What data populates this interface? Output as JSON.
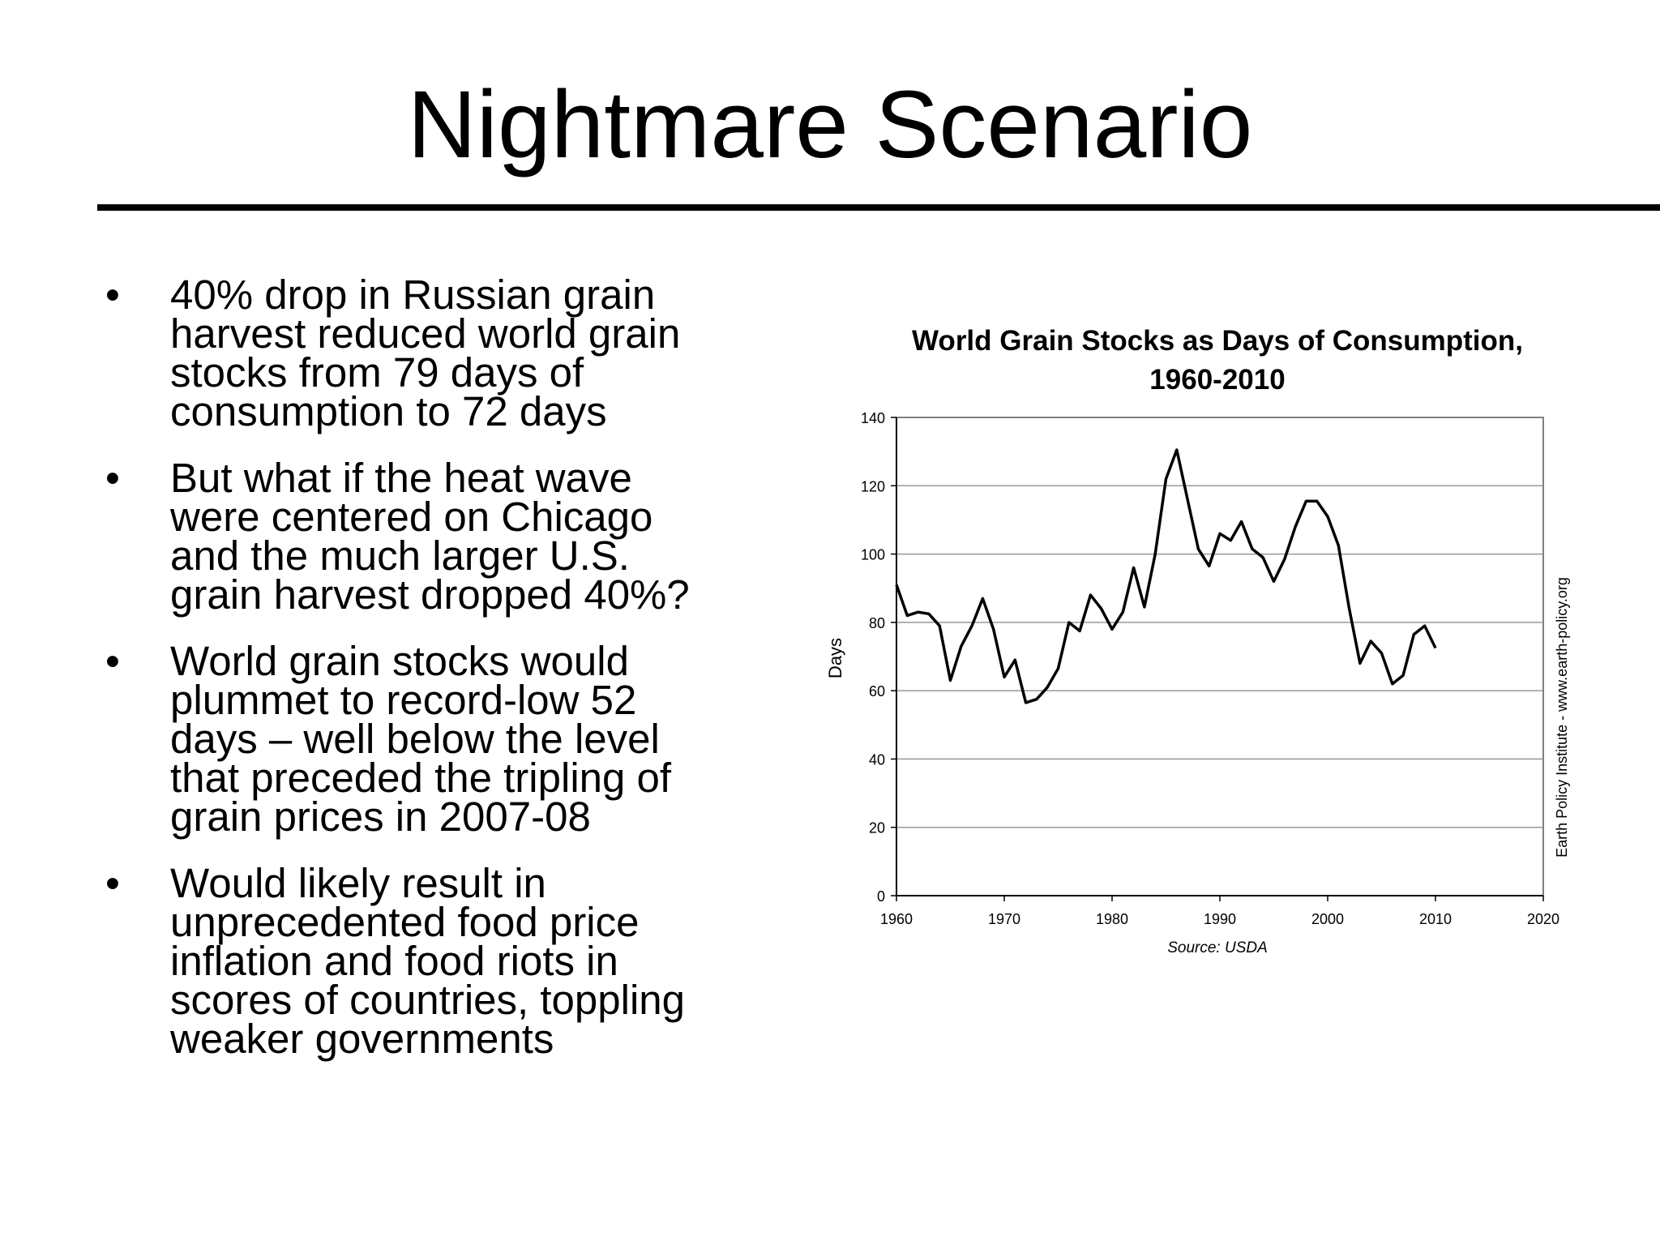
{
  "slide": {
    "title": "Nightmare Scenario",
    "bullet_symbol": "•",
    "bullets": [
      "40% drop in Russian grain harvest reduced world grain stocks from 79 days of consumption to 72 days",
      "But what if the heat wave were centered on Chicago and the much larger U.S. grain harvest dropped 40%?",
      "World grain stocks would plummet to record-low 52 days – well below the level that preceded the tripling of grain prices in 2007-08",
      "Would likely result in unprecedented food price inflation and food riots in scores of countries, toppling weaker governments"
    ]
  },
  "bullet_lines": [
    [
      "40% drop in Russian grain",
      "harvest reduced world grain",
      "stocks from 79 days of",
      "consumption to 72 days"
    ],
    [
      "But what if the heat wave",
      "were centered on Chicago",
      "and the much larger U.S.",
      "grain harvest dropped 40%?"
    ],
    [
      "World grain stocks would",
      "plummet to record-low 52",
      "days – well below the level",
      "that preceded the tripling of",
      "grain prices in 2007-08"
    ],
    [
      "Would likely result in",
      "unprecedented food price",
      "inflation and food riots in",
      "scores of countries, toppling",
      "weaker governments"
    ]
  ],
  "chart_data": {
    "type": "line",
    "title_lines": [
      "World Grain Stocks as Days of Consumption,",
      "1960-2010"
    ],
    "ylabel": "Days",
    "xlabel": "",
    "source": "Source: USDA",
    "side_note": "Earth Policy Institute - www.earth-policy.org",
    "xlim": [
      1960,
      2020
    ],
    "ylim": [
      0,
      140
    ],
    "xticks": [
      1960,
      1970,
      1980,
      1990,
      2000,
      2010,
      2020
    ],
    "yticks": [
      0,
      20,
      40,
      60,
      80,
      100,
      120,
      140
    ],
    "grid": true,
    "legend": "none",
    "line_color": "#000000",
    "grid_color": "#999999",
    "series": [
      {
        "x": [
          1960,
          1961,
          1962,
          1963,
          1964,
          1965,
          1966,
          1967,
          1968,
          1969,
          1970,
          1971,
          1972,
          1973,
          1974,
          1975,
          1976,
          1977,
          1978,
          1979,
          1980,
          1981,
          1982,
          1983,
          1984,
          1985,
          1986,
          1987,
          1988,
          1989,
          1990,
          1991,
          1992,
          1993,
          1994,
          1995,
          1996,
          1997,
          1998,
          1999,
          2000,
          2001,
          2002,
          2003,
          2004,
          2005,
          2006,
          2007,
          2008,
          2009,
          2010
        ],
        "values": [
          91,
          82,
          83,
          82.5,
          79,
          63,
          73,
          79,
          87,
          78,
          64,
          69,
          56.5,
          57.5,
          61,
          66.5,
          80,
          77.5,
          88,
          84,
          78,
          83,
          96,
          84.5,
          100,
          122,
          130.5,
          116,
          101.5,
          96.5,
          106,
          104,
          109.5,
          101.5,
          99,
          92,
          98.5,
          108,
          115.5,
          115.5,
          111,
          102.5,
          84,
          68,
          74.5,
          71,
          62,
          64.5,
          76.5,
          79,
          72.5
        ]
      }
    ]
  }
}
